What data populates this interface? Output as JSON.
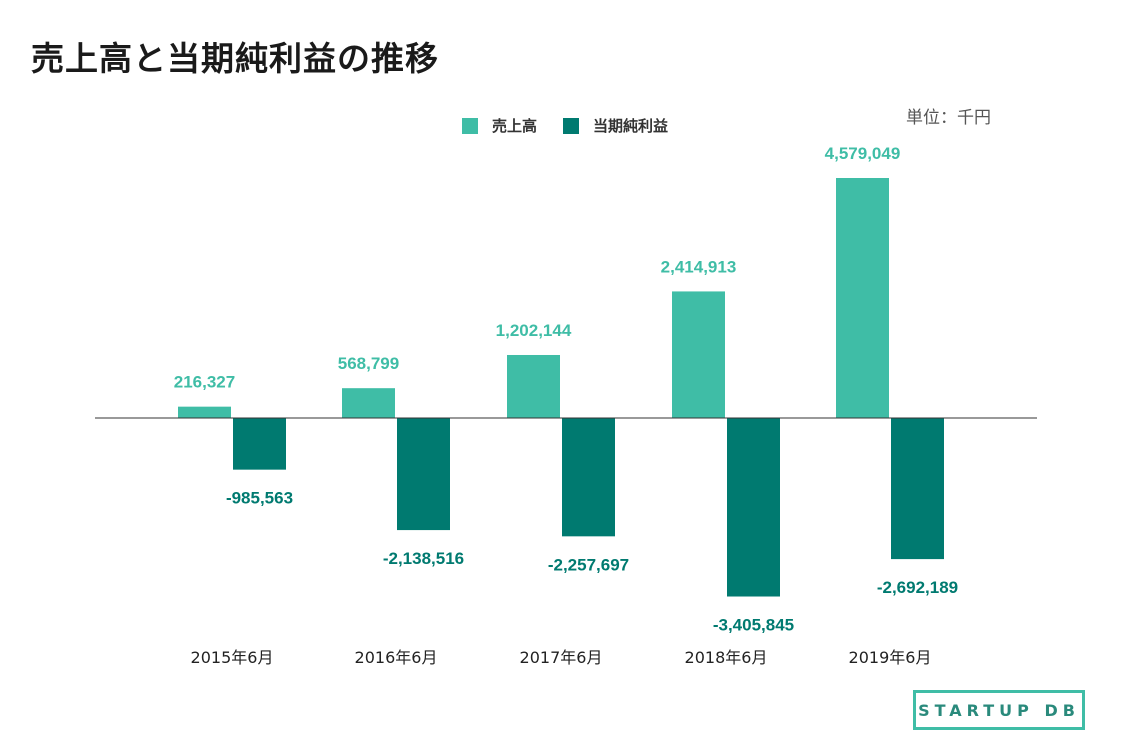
{
  "title": "売上高と当期純利益の推移",
  "unit_label": "単位：千円",
  "logo_text": "STARTUP DB",
  "colors": {
    "revenue": "#3fbda6",
    "net_income": "#007a70",
    "axis": "#333333"
  },
  "chart_data": {
    "type": "bar",
    "categories": [
      "2015年6月",
      "2016年6月",
      "2017年6月",
      "2018年6月",
      "2019年6月"
    ],
    "series": [
      {
        "name": "売上高",
        "values": [
          216327,
          568799,
          1202144,
          2414913,
          4579049
        ],
        "labels": [
          "216,327",
          "568,799",
          "1,202,144",
          "2,414,913",
          "4,579,049"
        ]
      },
      {
        "name": "当期純利益",
        "values": [
          -985563,
          -2138516,
          -2257697,
          -3405845,
          -2692189
        ],
        "labels": [
          "-985,563",
          "-2,138,516",
          "-2,257,697",
          "-3,405,845",
          "-2,692,189"
        ]
      }
    ],
    "legend_position": "top",
    "grid": false
  }
}
